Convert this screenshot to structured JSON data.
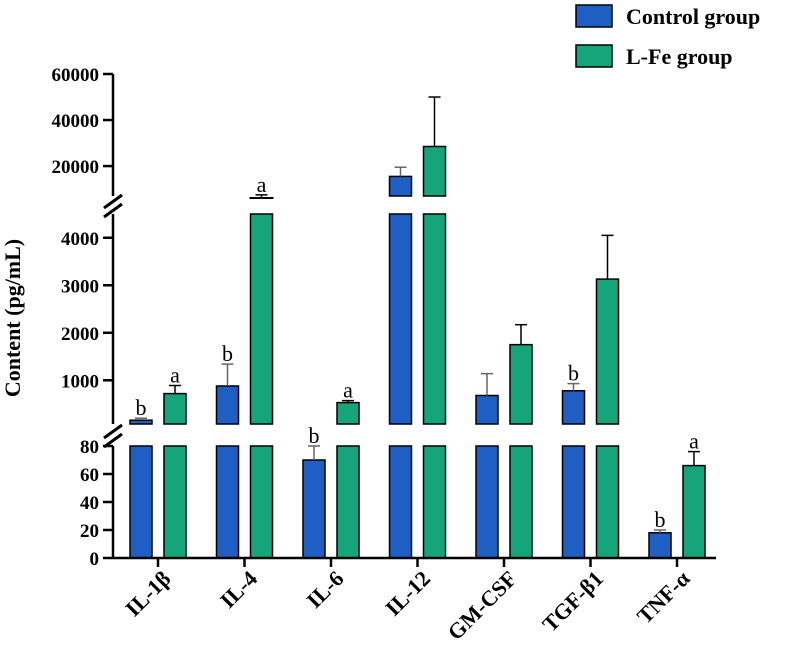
{
  "chart_data": {
    "type": "bar",
    "title": "",
    "xlabel": "",
    "ylabel": "Content (pg/mL)",
    "axis_breaks": [
      {
        "from": 80,
        "to": 80
      },
      {
        "from": 4500,
        "to": 7000
      }
    ],
    "y_segments": [
      {
        "ylim": [
          0,
          80
        ],
        "ticks": [
          "0",
          "20",
          "40",
          "60",
          "80"
        ]
      },
      {
        "ylim": [
          80,
          4500
        ],
        "ticks": [
          "1000",
          "2000",
          "3000",
          "4000"
        ]
      },
      {
        "ylim": [
          7000,
          60000
        ],
        "ticks": [
          "20000",
          "40000",
          "60000"
        ]
      }
    ],
    "categories": [
      "IL-1β",
      "IL-4",
      "IL-6",
      "IL-12",
      "GM-CSF",
      "TGF-β1",
      "TNF-α"
    ],
    "series": [
      {
        "name": "Control group",
        "color": "#1f5fc4",
        "values": [
          160,
          880,
          70,
          15500,
          680,
          780,
          18
        ],
        "errors": [
          20,
          460,
          10,
          4000,
          460,
          150,
          2
        ],
        "labels": [
          "b",
          "b",
          "b",
          "",
          "",
          "b",
          "b"
        ]
      },
      {
        "name": "L-Fe group",
        "color": "#16a57a",
        "values": [
          720,
          6000,
          530,
          28500,
          1750,
          3130,
          66
        ],
        "errors": [
          170,
          1500,
          40,
          21500,
          420,
          920,
          10
        ],
        "labels": [
          "a",
          "a",
          "a",
          "",
          "",
          "",
          "a"
        ]
      }
    ],
    "legend": {
      "position": "top-right"
    }
  }
}
